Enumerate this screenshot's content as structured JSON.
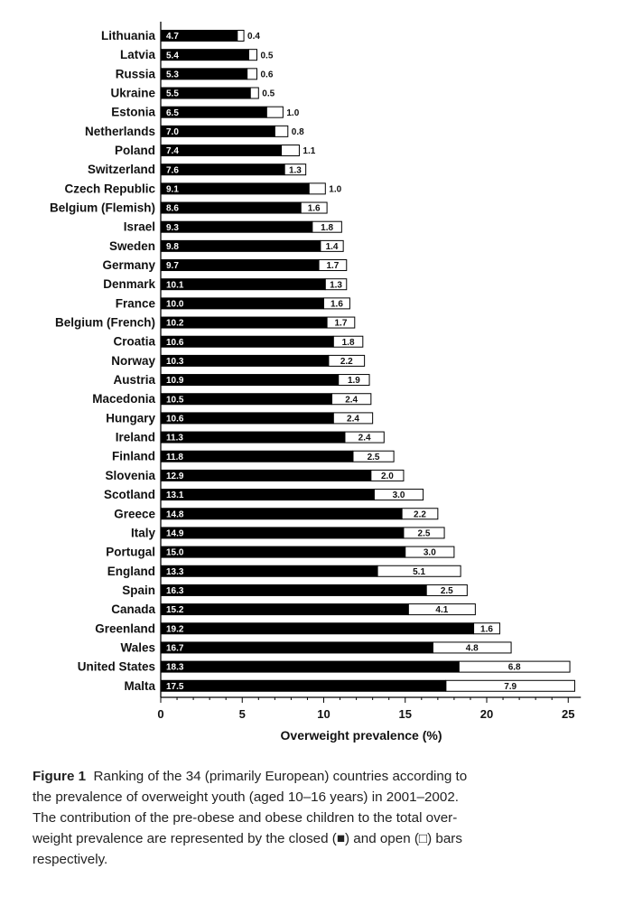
{
  "chart_data": {
    "type": "bar",
    "orientation": "horizontal",
    "stacked": true,
    "xlabel": "Overweight prevalence (%)",
    "xlim": [
      0,
      25
    ],
    "xticks": [
      0,
      5,
      10,
      15,
      20,
      25
    ],
    "categories": [
      "Lithuania",
      "Latvia",
      "Russia",
      "Ukraine",
      "Estonia",
      "Netherlands",
      "Poland",
      "Switzerland",
      "Czech Republic",
      "Belgium (Flemish)",
      "Israel",
      "Sweden",
      "Germany",
      "Denmark",
      "France",
      "Belgium (French)",
      "Croatia",
      "Norway",
      "Austria",
      "Macedonia",
      "Hungary",
      "Ireland",
      "Finland",
      "Slovenia",
      "Scotland",
      "Greece",
      "Italy",
      "Portugal",
      "England",
      "Spain",
      "Canada",
      "Greenland",
      "Wales",
      "United States",
      "Malta"
    ],
    "series": [
      {
        "style": "closed",
        "color": "#000000",
        "values": [
          4.7,
          5.4,
          5.3,
          5.5,
          6.5,
          7.0,
          7.4,
          7.6,
          9.1,
          8.6,
          9.3,
          9.8,
          9.7,
          10.1,
          10.0,
          10.2,
          10.6,
          10.3,
          10.9,
          10.5,
          10.6,
          11.3,
          11.8,
          12.9,
          13.1,
          14.8,
          14.9,
          15.0,
          13.3,
          16.3,
          15.2,
          19.2,
          16.7,
          18.3,
          17.5
        ]
      },
      {
        "style": "open",
        "color": "#ffffff",
        "values": [
          0.4,
          0.5,
          0.6,
          0.5,
          1.0,
          0.8,
          1.1,
          1.3,
          1.0,
          1.6,
          1.8,
          1.4,
          1.7,
          1.3,
          1.6,
          1.7,
          1.8,
          2.2,
          1.9,
          2.4,
          2.4,
          2.4,
          2.5,
          2.0,
          3.0,
          2.2,
          2.5,
          3.0,
          5.1,
          2.5,
          4.1,
          1.6,
          4.8,
          6.8,
          7.9
        ]
      }
    ],
    "labels_closed": [
      "4.7",
      "5.4",
      "5.3",
      "5.5",
      "6.5",
      "7.0",
      "7.4",
      "7.6",
      "9.1",
      "8.6",
      "9.3",
      "9.8",
      "9.7",
      "10.1",
      "10.0",
      "10.2",
      "10.6",
      "10.3",
      "10.9",
      "10.5",
      "10.6",
      "11.3",
      "11.8",
      "12.9",
      "13.1",
      "14.8",
      "14.9",
      "15.0",
      "13.3",
      "16.3",
      "15.2",
      "19.2",
      "16.7",
      "18.3",
      "17.5"
    ],
    "labels_open": [
      "0.4",
      "0.5",
      "0.6",
      "0.5",
      "1.0",
      "0.8",
      "1.1",
      "1.3",
      "1.0",
      "1.6",
      "1.8",
      "1.4",
      "1.7",
      "1.3",
      "1.6",
      "1.7",
      "1.8",
      "2.2",
      "1.9",
      "2.4",
      "2.4",
      "2.4",
      "2.5",
      "2.0",
      "3.0",
      "2.2",
      "2.5",
      "3.0",
      "5.1",
      "2.5",
      "4.1",
      "1.6",
      "4.8",
      "6.8",
      "7.9"
    ],
    "grid": false,
    "legend": "none"
  },
  "caption": {
    "figure_number": "Figure 1",
    "lines": [
      "Ranking of the 34 (primarily European) countries according to",
      "the prevalence of overweight youth (aged 10–16 years) in 2001–2002.",
      "The contribution of the pre-obese and obese children to the total over-",
      "weight prevalence are represented by the closed (■) and open (□) bars",
      "respectively."
    ]
  }
}
